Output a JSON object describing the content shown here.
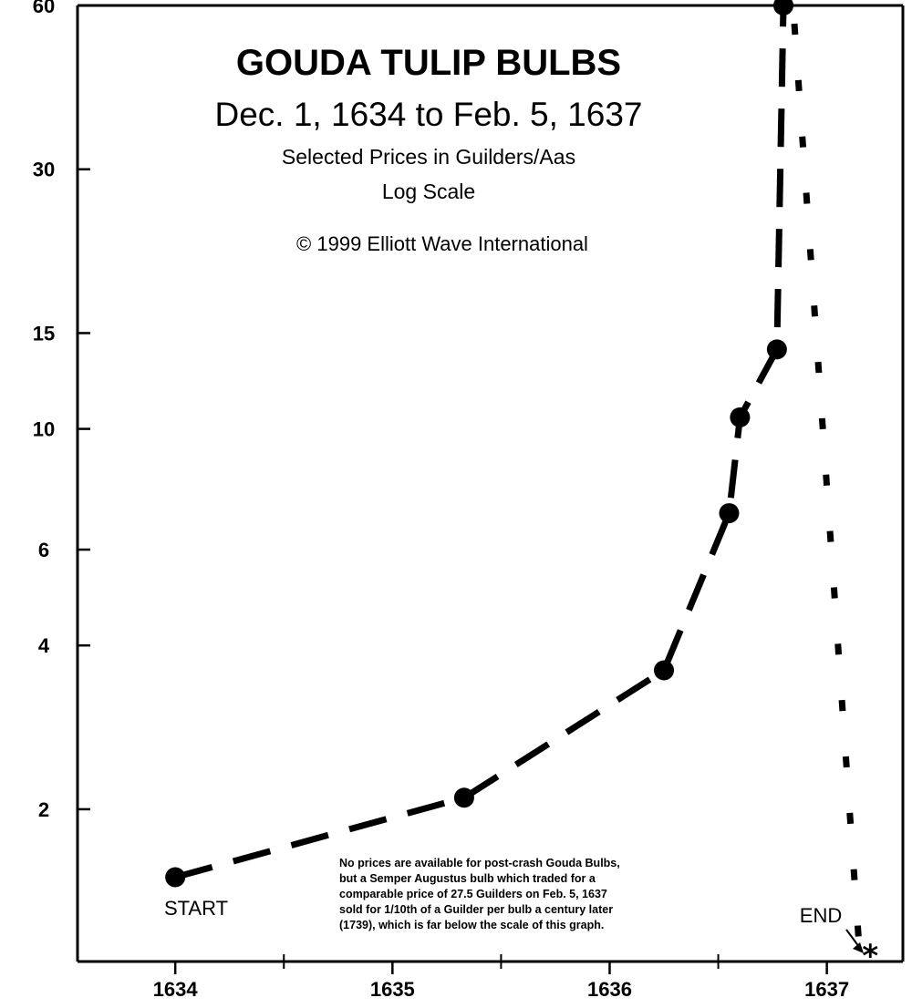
{
  "chart_data": {
    "type": "line",
    "title": "GOUDA TULIP BULBS",
    "subtitle": "Dec. 1, 1634 to Feb. 5, 1637",
    "subtitle2": "Selected Prices in Guilders/Aas",
    "scale_note": "Log Scale",
    "copyright": "© 1999 Elliott Wave International",
    "y_scale": "log",
    "ylim": [
      1.05,
      60
    ],
    "xlim": [
      1633.55,
      1637.35
    ],
    "y_ticks": [
      2,
      4,
      6,
      10,
      15,
      30,
      60
    ],
    "y_tick_labels": [
      "2",
      "4",
      "6",
      "10",
      "15",
      "30",
      "60"
    ],
    "x_ticks": [
      1634,
      1635,
      1636,
      1637
    ],
    "x_tick_labels": [
      "1634",
      "1635",
      "1636",
      "1637"
    ],
    "grid": false,
    "series": [
      {
        "points": [
          {
            "x": 1634.0,
            "y": 1.5
          },
          {
            "x": 1635.33,
            "y": 2.1
          },
          {
            "x": 1636.25,
            "y": 3.6
          },
          {
            "x": 1636.55,
            "y": 7.0
          },
          {
            "x": 1636.6,
            "y": 10.5
          },
          {
            "x": 1636.77,
            "y": 14.0
          },
          {
            "x": 1636.8,
            "y": 60.0
          }
        ],
        "line_style": "dashed",
        "marker": "circle"
      }
    ],
    "decline": {
      "x": [
        1636.8,
        1637.15
      ],
      "y": [
        60.0,
        1.1
      ],
      "line_style": "dotted"
    },
    "end_marker": {
      "x": 1637.2,
      "y": 1.06,
      "symbol": "*"
    },
    "annotations": {
      "start": "START",
      "end": "END",
      "note": [
        "No prices are available for post-crash Gouda Bulbs,",
        "but a Semper Augustus bulb which traded for a",
        "comparable price of 27.5 Guilders on Feb. 5, 1637",
        "sold for 1/10th of a Guilder per bulb a century later",
        "(1739), which is far below the scale of this graph."
      ]
    }
  },
  "colors": {
    "ink": "#000000",
    "background": "#ffffff"
  }
}
